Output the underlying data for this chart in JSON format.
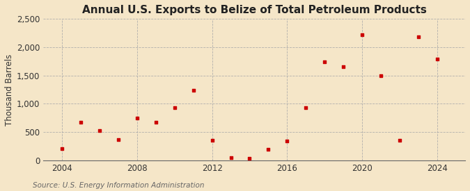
{
  "title": "Annual U.S. Exports to Belize of Total Petroleum Products",
  "ylabel": "Thousand Barrels",
  "source": "Source: U.S. Energy Information Administration",
  "background_color": "#f5e6c8",
  "plot_background": "#f5e6c8",
  "marker_color": "#cc0000",
  "years": [
    2004,
    2005,
    2006,
    2007,
    2008,
    2009,
    2010,
    2011,
    2012,
    2013,
    2014,
    2015,
    2016,
    2017,
    2018,
    2019,
    2020,
    2021,
    2022,
    2023,
    2024
  ],
  "values": [
    210,
    680,
    530,
    370,
    750,
    680,
    930,
    1240,
    350,
    50,
    40,
    200,
    340,
    930,
    1740,
    1660,
    2220,
    1500,
    350,
    2180,
    1790
  ],
  "ylim": [
    0,
    2500
  ],
  "yticks": [
    0,
    500,
    1000,
    1500,
    2000,
    2500
  ],
  "xlim": [
    2003,
    2025.5
  ],
  "xtick_years": [
    2004,
    2008,
    2012,
    2016,
    2020,
    2024
  ],
  "grid_color": "#aaaaaa",
  "grid_linestyle": "--",
  "title_fontsize": 11,
  "label_fontsize": 8.5,
  "tick_fontsize": 8.5,
  "source_fontsize": 7.5
}
